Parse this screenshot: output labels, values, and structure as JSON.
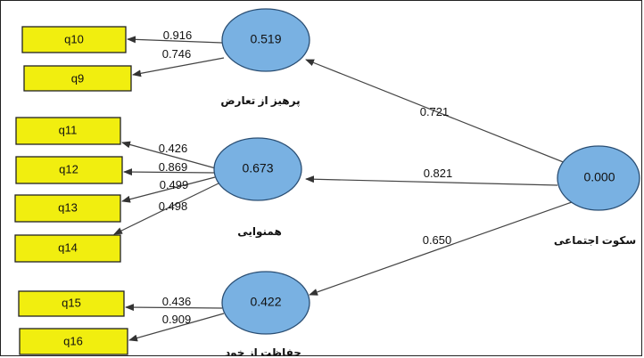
{
  "diagram": {
    "constructs": {
      "social_silence": {
        "name": "سکوت اجتماعی",
        "value": "0.000"
      },
      "conflict_avoidance": {
        "name": "پرهیز از تعارض",
        "value": "0.519"
      },
      "conformity": {
        "name": "همنوایی",
        "value": "0.673"
      },
      "self_protection": {
        "name": "حفاظت از خود",
        "value": "0.422"
      }
    },
    "indicators": {
      "q10": "q10",
      "q9": "q9",
      "q11": "q11",
      "q12": "q12",
      "q13": "q13",
      "q14": "q14",
      "q15": "q15",
      "q16": "q16"
    },
    "path_coefficients": {
      "to_conflict_avoidance": "0.721",
      "to_conformity": "0.821",
      "to_self_protection": "0.650"
    },
    "loadings": {
      "q10": "0.916",
      "q9": "0.746",
      "q11": "0.426",
      "q12": "0.869",
      "q13": "0.499",
      "q14": "0.498",
      "q15": "0.436",
      "q16": "0.909"
    }
  }
}
